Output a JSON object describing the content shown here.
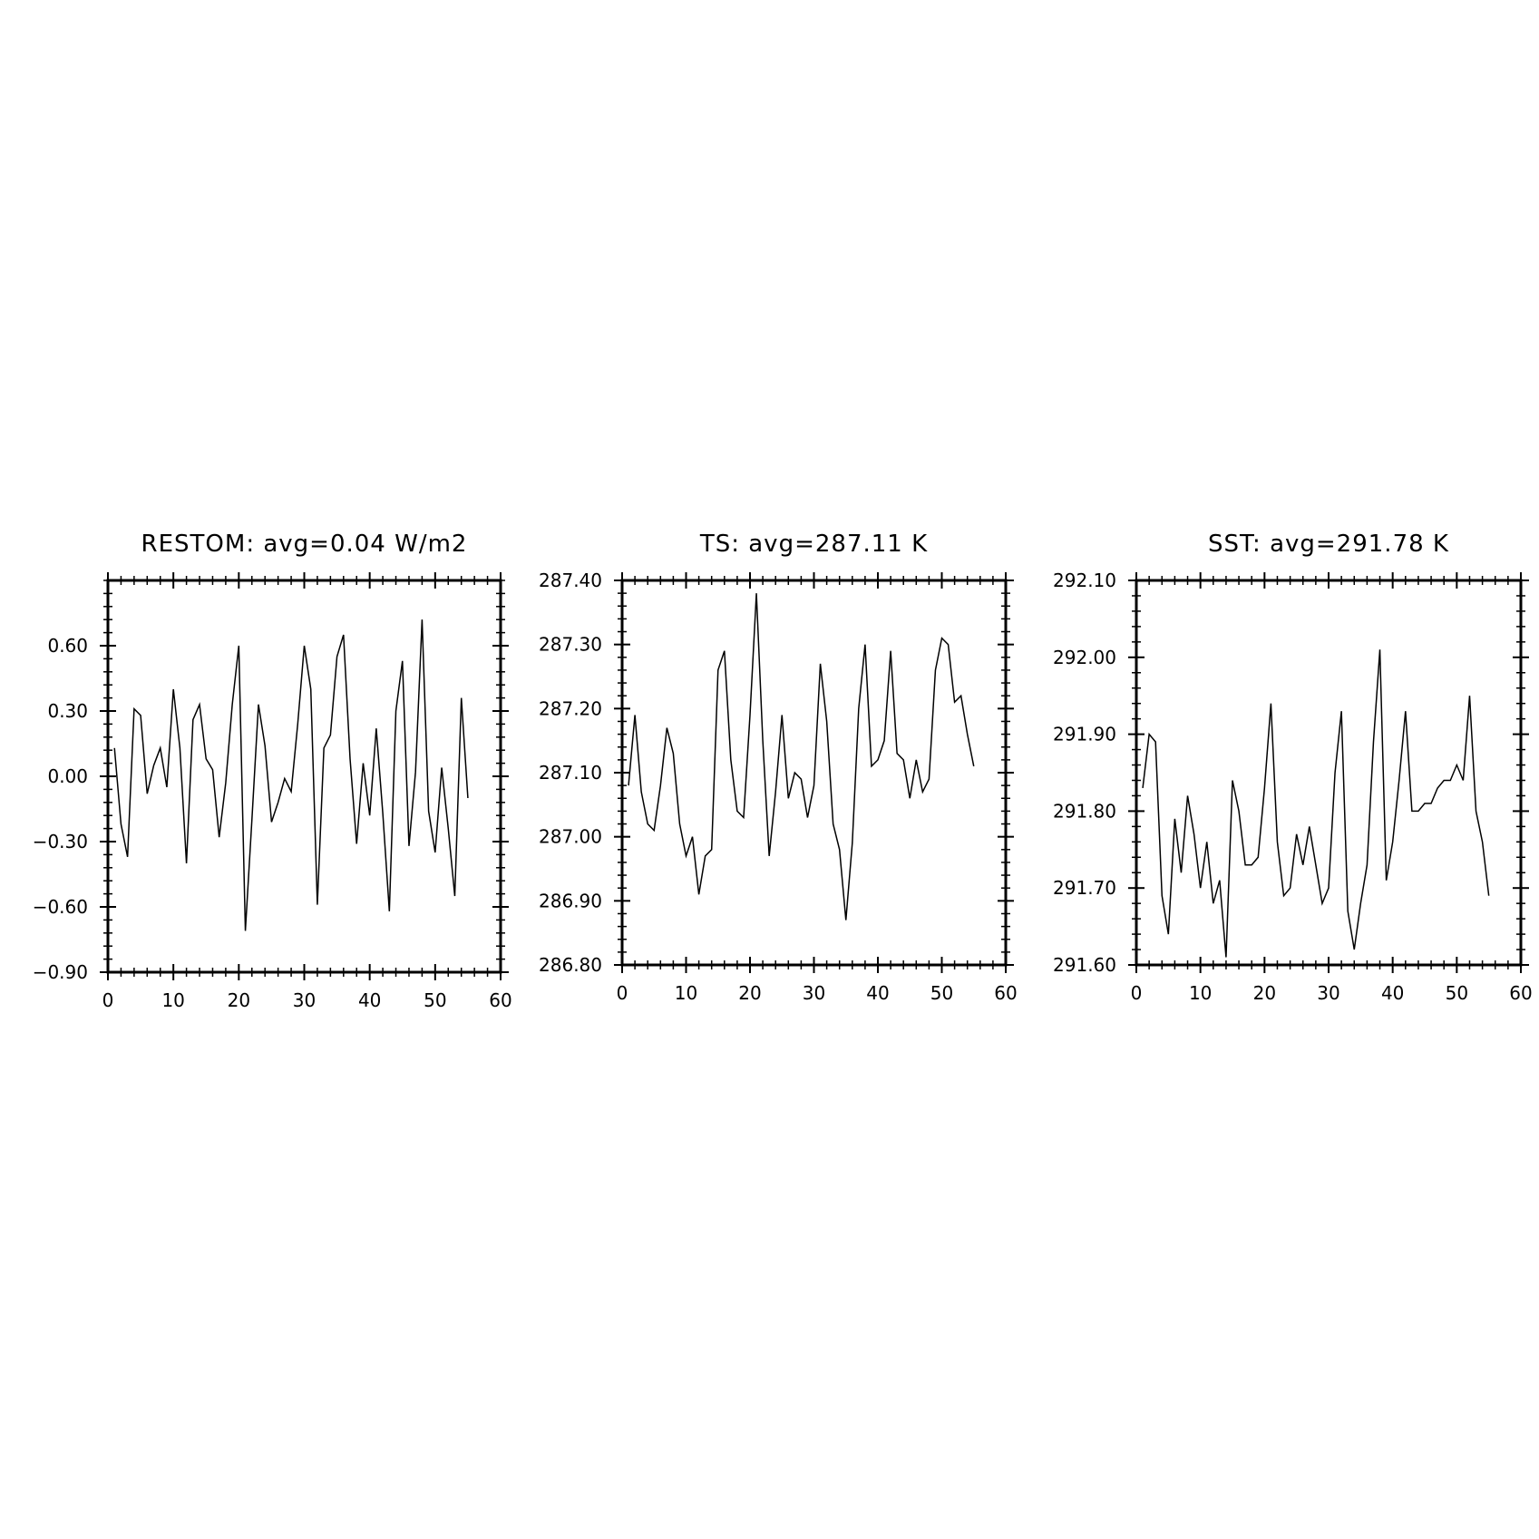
{
  "chart_data": [
    {
      "type": "line",
      "title": "RESTOM: avg=0.04 W/m2",
      "xlabel": "",
      "ylabel": "",
      "xlim": [
        0,
        60
      ],
      "ylim": [
        -0.9,
        0.9
      ],
      "xticks": [
        0,
        10,
        20,
        30,
        40,
        50,
        60
      ],
      "xtick_labels": [
        "0",
        "10",
        "20",
        "30",
        "40",
        "50",
        "60"
      ],
      "yticks": [
        -0.9,
        -0.6,
        -0.3,
        0.0,
        0.3,
        0.6
      ],
      "ytick_labels": [
        "−0.90",
        "−0.60",
        "−0.30",
        "0.00",
        "0.30",
        "0.60"
      ],
      "grid": false,
      "x": [
        1,
        2,
        3,
        4,
        5,
        6,
        7,
        8,
        9,
        10,
        11,
        12,
        13,
        14,
        15,
        16,
        17,
        18,
        19,
        20,
        21,
        22,
        23,
        24,
        25,
        26,
        27,
        28,
        29,
        30,
        31,
        32,
        33,
        34,
        35,
        36,
        37,
        38,
        39,
        40,
        41,
        42,
        43,
        44,
        45,
        46,
        47,
        48,
        49,
        50,
        51,
        52,
        53,
        54,
        55
      ],
      "y": [
        0.13,
        -0.22,
        -0.37,
        0.31,
        0.28,
        -0.08,
        0.05,
        0.13,
        -0.05,
        0.4,
        0.13,
        -0.4,
        0.26,
        0.33,
        0.08,
        0.03,
        -0.28,
        -0.03,
        0.33,
        0.6,
        -0.71,
        -0.2,
        0.33,
        0.14,
        -0.21,
        -0.12,
        -0.01,
        -0.07,
        0.24,
        0.6,
        0.4,
        -0.59,
        0.13,
        0.19,
        0.55,
        0.65,
        0.08,
        -0.31,
        0.06,
        -0.18,
        0.22,
        -0.17,
        -0.62,
        0.3,
        0.53,
        -0.32,
        0.02,
        0.72,
        -0.16,
        -0.35,
        0.04,
        -0.24,
        -0.55,
        0.36,
        -0.1
      ]
    },
    {
      "type": "line",
      "title": "TS: avg=287.11 K",
      "xlabel": "",
      "ylabel": "",
      "xlim": [
        0,
        60
      ],
      "ylim": [
        286.8,
        287.4
      ],
      "xticks": [
        0,
        10,
        20,
        30,
        40,
        50,
        60
      ],
      "xtick_labels": [
        "0",
        "10",
        "20",
        "30",
        "40",
        "50",
        "60"
      ],
      "yticks": [
        286.8,
        286.9,
        287.0,
        287.1,
        287.2,
        287.3,
        287.4
      ],
      "ytick_labels": [
        "286.80",
        "286.90",
        "287.00",
        "287.10",
        "287.20",
        "287.30",
        "287.40"
      ],
      "grid": false,
      "x": [
        1,
        2,
        3,
        4,
        5,
        6,
        7,
        8,
        9,
        10,
        11,
        12,
        13,
        14,
        15,
        16,
        17,
        18,
        19,
        20,
        21,
        22,
        23,
        24,
        25,
        26,
        27,
        28,
        29,
        30,
        31,
        32,
        33,
        34,
        35,
        36,
        37,
        38,
        39,
        40,
        41,
        42,
        43,
        44,
        45,
        46,
        47,
        48,
        49,
        50,
        51,
        52,
        53,
        54,
        55
      ],
      "y": [
        287.08,
        287.19,
        287.07,
        287.02,
        287.01,
        287.08,
        287.17,
        287.13,
        287.02,
        286.97,
        287.0,
        286.91,
        286.97,
        286.98,
        287.26,
        287.29,
        287.12,
        287.04,
        287.03,
        287.19,
        287.38,
        287.15,
        286.97,
        287.07,
        287.19,
        287.06,
        287.1,
        287.09,
        287.03,
        287.08,
        287.27,
        287.18,
        287.02,
        286.98,
        286.87,
        286.99,
        287.2,
        287.3,
        287.11,
        287.12,
        287.15,
        287.29,
        287.13,
        287.12,
        287.06,
        287.12,
        287.07,
        287.09,
        287.26,
        287.31,
        287.3,
        287.21,
        287.22,
        287.16,
        287.11
      ]
    },
    {
      "type": "line",
      "title": "SST: avg=291.78 K",
      "xlabel": "",
      "ylabel": "",
      "xlim": [
        0,
        60
      ],
      "ylim": [
        291.6,
        292.1
      ],
      "xticks": [
        0,
        10,
        20,
        30,
        40,
        50,
        60
      ],
      "xtick_labels": [
        "0",
        "10",
        "20",
        "30",
        "40",
        "50",
        "60"
      ],
      "yticks": [
        291.6,
        291.7,
        291.8,
        291.9,
        292.0,
        292.1
      ],
      "ytick_labels": [
        "291.60",
        "291.70",
        "291.80",
        "291.90",
        "292.00",
        "292.10"
      ],
      "grid": false,
      "x": [
        1,
        2,
        3,
        4,
        5,
        6,
        7,
        8,
        9,
        10,
        11,
        12,
        13,
        14,
        15,
        16,
        17,
        18,
        19,
        20,
        21,
        22,
        23,
        24,
        25,
        26,
        27,
        28,
        29,
        30,
        31,
        32,
        33,
        34,
        35,
        36,
        37,
        38,
        39,
        40,
        41,
        42,
        43,
        44,
        45,
        46,
        47,
        48,
        49,
        50,
        51,
        52,
        53,
        54,
        55
      ],
      "y": [
        291.83,
        291.9,
        291.89,
        291.69,
        291.64,
        291.79,
        291.72,
        291.82,
        291.77,
        291.7,
        291.76,
        291.68,
        291.71,
        291.61,
        291.84,
        291.8,
        291.73,
        291.73,
        291.74,
        291.83,
        291.94,
        291.76,
        291.69,
        291.7,
        291.77,
        291.73,
        291.78,
        291.73,
        291.68,
        291.7,
        291.85,
        291.93,
        291.67,
        291.62,
        291.68,
        291.73,
        291.89,
        292.01,
        291.71,
        291.76,
        291.84,
        291.93,
        291.8,
        291.8,
        291.81,
        291.81,
        291.83,
        291.84,
        291.84,
        291.86,
        291.84,
        291.95,
        291.8,
        291.76,
        291.69
      ]
    }
  ]
}
